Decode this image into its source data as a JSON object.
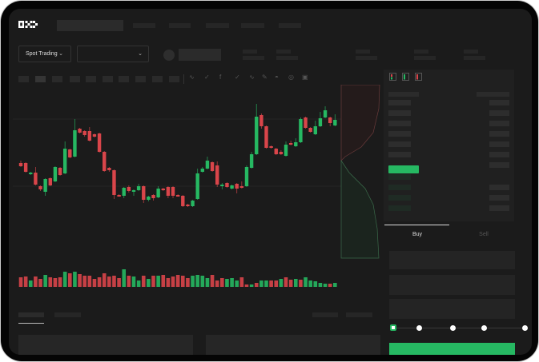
{
  "header": {
    "logo": "OKX",
    "nav_items": [
      "",
      "",
      "",
      "",
      ""
    ]
  },
  "market": {
    "mode_dropdown": "Spot Trading",
    "pair_dropdown": "",
    "mode_icon": "chevron-down-icon"
  },
  "colors": {
    "up": "#26b862",
    "down": "#d9454a",
    "background": "#1b1b1b",
    "panel": "#202020"
  },
  "toolbar": {
    "icons": [
      "line-icon",
      "check-icon",
      "fx-icon",
      "check-icon",
      "wave-icon",
      "pencil-icon",
      "gauge-icon",
      "target-icon",
      "expand-icon"
    ]
  },
  "orderbook": {
    "layout_icons": [
      "orderbook-both-icon",
      "orderbook-bids-icon",
      "orderbook-asks-icon"
    ]
  },
  "trade": {
    "tabs": [
      "Buy",
      "Sell"
    ],
    "active_tab": "Buy",
    "slider_value_percent": 0,
    "slider_steps": [
      0,
      25,
      50,
      75,
      100
    ]
  },
  "chart_data": {
    "type": "candlestick",
    "candles": [
      [
        203,
        207,
        200,
        208
      ],
      [
        203,
        214,
        202,
        215
      ],
      [
        217,
        215,
        214,
        218
      ],
      [
        215,
        230,
        208,
        231
      ],
      [
        232,
        236,
        231,
        238
      ],
      [
        239,
        223,
        222,
        244
      ],
      [
        222,
        231,
        221,
        232
      ],
      [
        226,
        208,
        207,
        227
      ],
      [
        209,
        218,
        208,
        219
      ],
      [
        216,
        185,
        176,
        217
      ],
      [
        186,
        196,
        185,
        197
      ],
      [
        195,
        162,
        148,
        196
      ],
      [
        160,
        165,
        159,
        166
      ],
      [
        163,
        168,
        162,
        170
      ],
      [
        163,
        175,
        158,
        176
      ],
      [
        167,
        170,
        166,
        171
      ],
      [
        166,
        189,
        165,
        190
      ],
      [
        189,
        213,
        188,
        214
      ],
      [
        209,
        212,
        208,
        214
      ],
      [
        212,
        243,
        211,
        248
      ],
      [
        243,
        244,
        242,
        245
      ],
      [
        244,
        234,
        233,
        247
      ],
      [
        233,
        238,
        231,
        240
      ],
      [
        239,
        237,
        236,
        244
      ],
      [
        237,
        232,
        229,
        238
      ],
      [
        232,
        249,
        231,
        253
      ],
      [
        249,
        245,
        244,
        251
      ],
      [
        243,
        247,
        242,
        250
      ],
      [
        246,
        235,
        232,
        247
      ],
      [
        235,
        237,
        234,
        238
      ],
      [
        233,
        244,
        232,
        247
      ],
      [
        233,
        244,
        232,
        247
      ],
      [
        243,
        244,
        242,
        245
      ],
      [
        244,
        257,
        243,
        258
      ],
      [
        255,
        257,
        254,
        258
      ],
      [
        257,
        250,
        249,
        258
      ],
      [
        248,
        216,
        210,
        249
      ],
      [
        214,
        210,
        208,
        215
      ],
      [
        210,
        200,
        195,
        211
      ],
      [
        202,
        213,
        201,
        214
      ],
      [
        206,
        230,
        201,
        233
      ],
      [
        232,
        230,
        228,
        236
      ],
      [
        228,
        233,
        227,
        234
      ],
      [
        235,
        231,
        230,
        236
      ],
      [
        229,
        235,
        228,
        241
      ],
      [
        232,
        234,
        226,
        235
      ],
      [
        232,
        208,
        206,
        233
      ],
      [
        209,
        192,
        189,
        210
      ],
      [
        192,
        145,
        129,
        193
      ],
      [
        143,
        157,
        141,
        160
      ],
      [
        157,
        184,
        156,
        185
      ],
      [
        182,
        184,
        181,
        185
      ],
      [
        185,
        192,
        184,
        193
      ],
      [
        189,
        192,
        187,
        193
      ],
      [
        194,
        180,
        176,
        195
      ],
      [
        178,
        180,
        175,
        181
      ],
      [
        182,
        177,
        172,
        183
      ],
      [
        177,
        148,
        146,
        178
      ],
      [
        146,
        159,
        145,
        160
      ],
      [
        159,
        164,
        158,
        165
      ],
      [
        167,
        157,
        150,
        168
      ],
      [
        157,
        147,
        139,
        158
      ],
      [
        146,
        137,
        132,
        147
      ],
      [
        146,
        153,
        145,
        157
      ],
      [
        156,
        149,
        142,
        157
      ]
    ],
    "candle_fields": [
      "open",
      "close",
      "high",
      "low"
    ],
    "volume": [
      12,
      13,
      8,
      13,
      10,
      15,
      12,
      11,
      12,
      19,
      17,
      19,
      16,
      14,
      14,
      10,
      12,
      17,
      13,
      14,
      11,
      22,
      14,
      13,
      8,
      14,
      10,
      14,
      14,
      15,
      11,
      13,
      15,
      14,
      11,
      14,
      15,
      14,
      11,
      15,
      8,
      11,
      10,
      11,
      8,
      12,
      3,
      3,
      5,
      8,
      8,
      8,
      8,
      10,
      12,
      9,
      10,
      9,
      12,
      8,
      7,
      5,
      4,
      4,
      5
    ],
    "volume_up": [
      0,
      0,
      1,
      0,
      0,
      1,
      0,
      0,
      0,
      1,
      0,
      1,
      0,
      0,
      0,
      0,
      0,
      0,
      0,
      0,
      0,
      1,
      0,
      1,
      1,
      0,
      1,
      0,
      1,
      0,
      0,
      0,
      0,
      0,
      0,
      1,
      1,
      1,
      1,
      0,
      0,
      0,
      1,
      1,
      1,
      0,
      0,
      1,
      0,
      1,
      1,
      0,
      0,
      1,
      0,
      0,
      1,
      0,
      1,
      1,
      1,
      1,
      1,
      0,
      1
    ]
  }
}
